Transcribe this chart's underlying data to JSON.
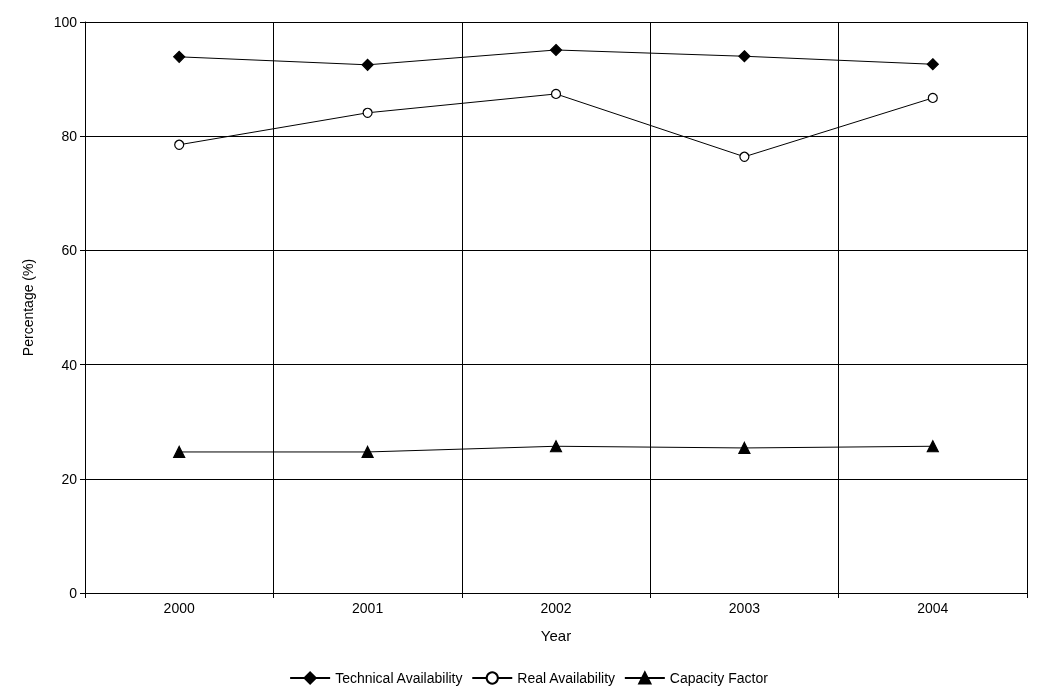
{
  "chart_data": {
    "type": "line",
    "xlabel": "Year",
    "ylabel": "Percentage (%)",
    "categories": [
      "2000",
      "2001",
      "2002",
      "2003",
      "2004"
    ],
    "series": [
      {
        "name": "Technical Availability",
        "color": "#000000",
        "marker": "diamond",
        "values": [
          93.9,
          92.5,
          95.1,
          94.0,
          92.6
        ]
      },
      {
        "name": "Real Availability",
        "color": "#000000",
        "marker": "circle",
        "values": [
          78.5,
          84.1,
          87.4,
          76.4,
          86.7
        ]
      },
      {
        "name": "Capacity Factor",
        "color": "#000000",
        "marker": "triangle",
        "values": [
          24.7,
          24.7,
          25.7,
          25.4,
          25.7
        ]
      }
    ],
    "ylim": [
      0,
      100
    ],
    "yticks": [
      0,
      20,
      40,
      60,
      80,
      100
    ],
    "grid": true,
    "legend": "bottom",
    "line_style": "solid"
  }
}
